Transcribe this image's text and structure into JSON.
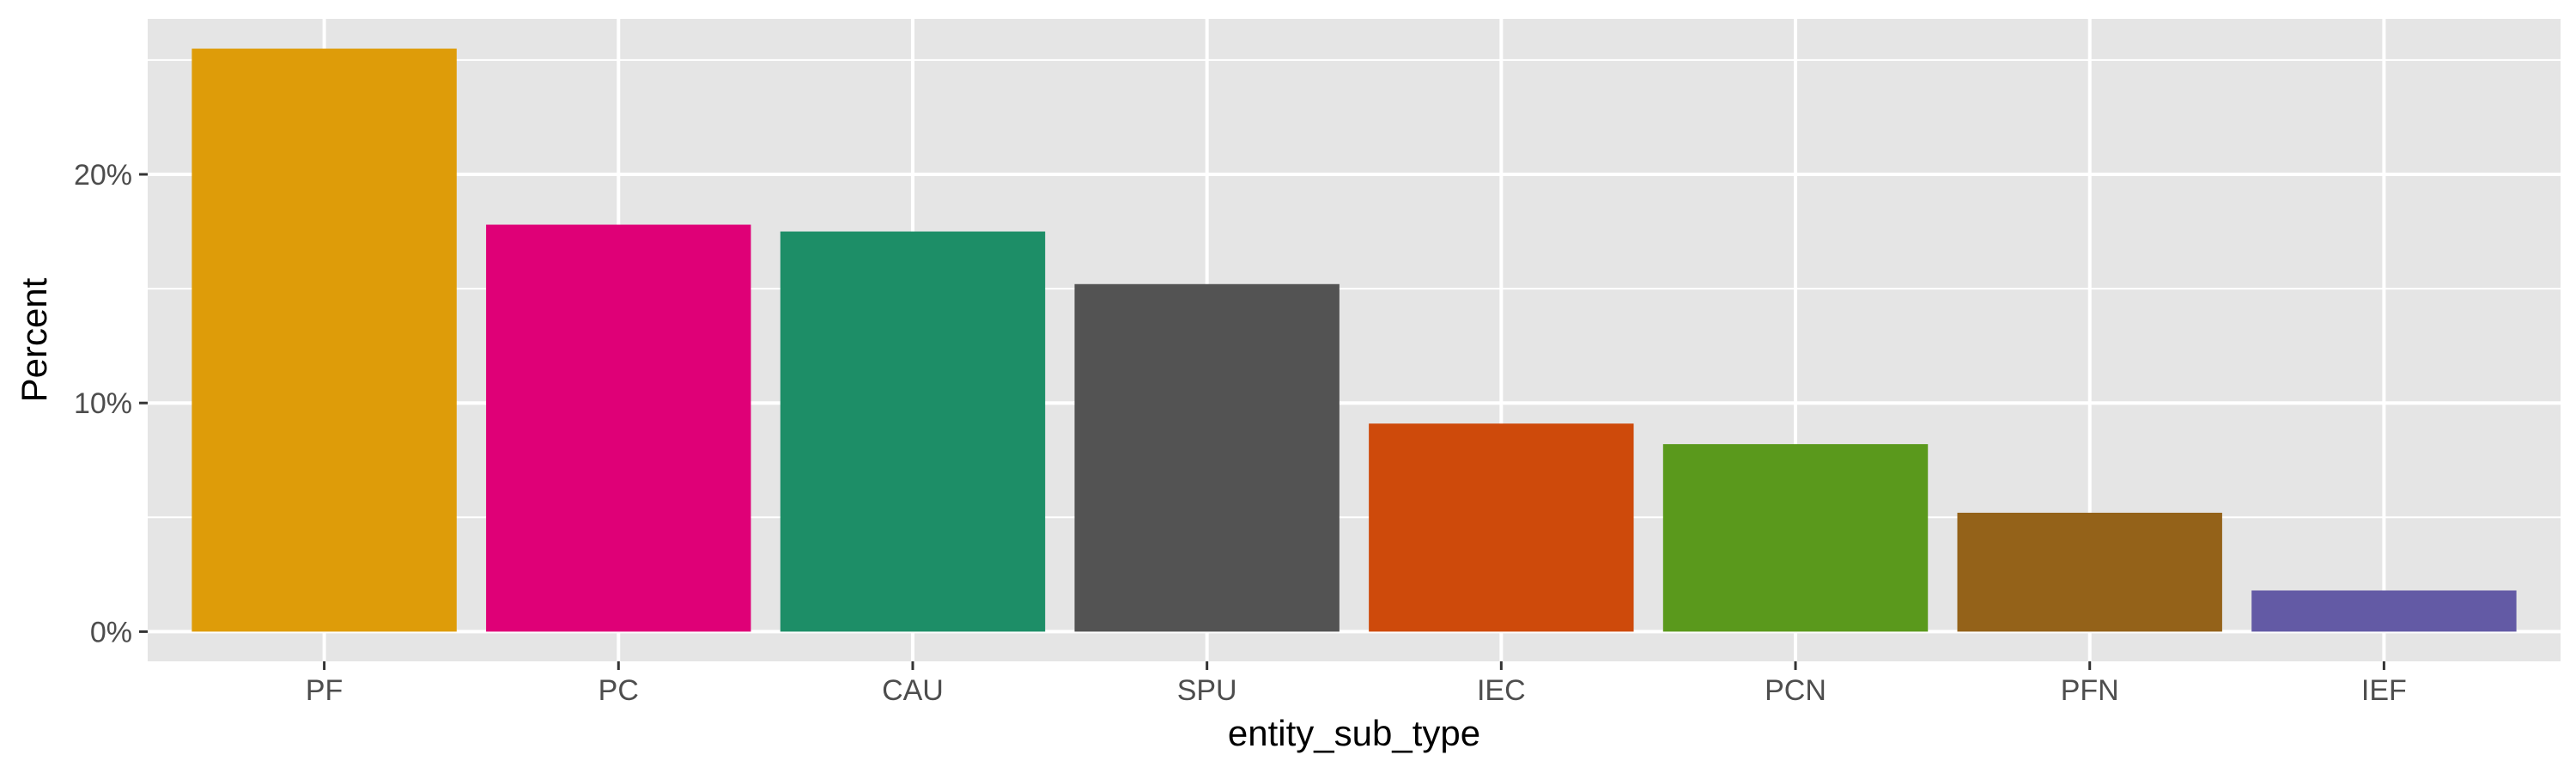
{
  "chart_data": {
    "type": "bar",
    "title": "",
    "xlabel": "entity_sub_type",
    "ylabel": "Percent",
    "categories": [
      "PF",
      "PC",
      "CAU",
      "SPU",
      "IEC",
      "PCN",
      "PFN",
      "IEF"
    ],
    "values": [
      25.5,
      17.8,
      17.5,
      15.2,
      9.1,
      8.2,
      5.2,
      1.8
    ],
    "colors": [
      "#DE9C09",
      "#DF0077",
      "#1D8E67",
      "#535353",
      "#CE4A0B",
      "#5A991C",
      "#946219",
      "#635AA5"
    ],
    "ylim": [
      -1.3,
      26.8
    ],
    "yticks": [
      0,
      10,
      20
    ],
    "ytick_labels": [
      "0%",
      "10%",
      "20%"
    ],
    "grid": true,
    "legend": "none",
    "panel_background": "#E5E5E5",
    "grid_color": "#FFFFFF"
  }
}
